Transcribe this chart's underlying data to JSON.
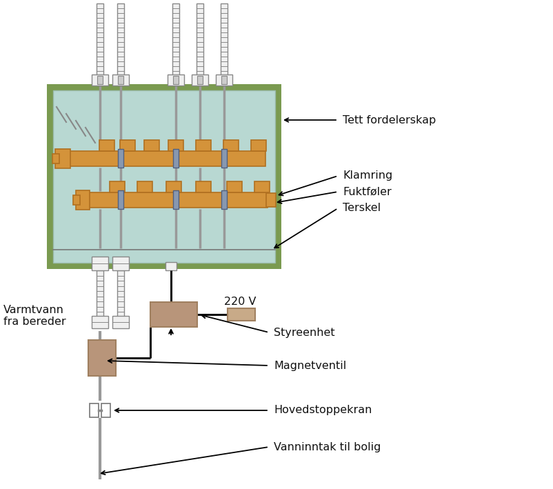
{
  "bg": "#ffffff",
  "teal_fill": "#b8d8d2",
  "olive_border": "#7a9a50",
  "orange": "#d4933a",
  "orange_dk": "#b07020",
  "clamp_gray": "#8898b0",
  "tan_dark": "#a08060",
  "tan_fill": "#b8957a",
  "tan2_fill": "#c8aa88",
  "pipe_fill": "#f0f0f0",
  "pipe_edge": "#888888",
  "black": "#111111",
  "white": "#ffffff",
  "label_tett": "Tett fordelerskap",
  "label_klamring": "Klamring",
  "label_fukt": "Fuktføler",
  "label_terskel": "Terskel",
  "label_varmtvann": "Varmtvann\nfra bereder",
  "label_220v": "220 V",
  "label_styr": "Styreenhet",
  "label_magnet": "Magnetventil",
  "label_hoved": "Hovedstoppekran",
  "label_vann": "Vanninntak til bolig",
  "fig_w": 8.03,
  "fig_h": 7.09,
  "dpi": 100
}
